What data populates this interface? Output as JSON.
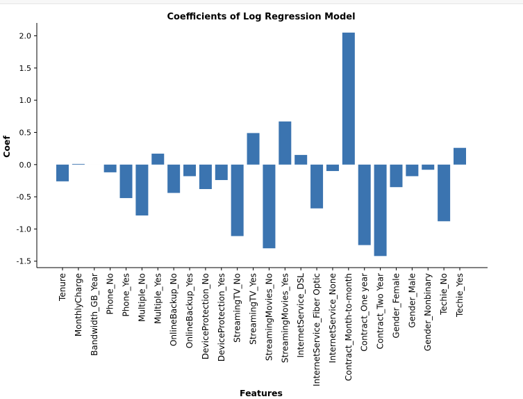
{
  "chart_data": {
    "type": "bar",
    "title": "Coefficients of Log Regression Model",
    "xlabel": "Features",
    "ylabel": "Coef",
    "ylim": [
      -1.6,
      2.2
    ],
    "yticks": [
      -1.5,
      -1.0,
      -0.5,
      0.0,
      0.5,
      1.0,
      1.5,
      2.0
    ],
    "grid": false,
    "bar_color": "#3b74b0",
    "categories": [
      "Tenure",
      "MonthlyCharge",
      "Bandwidth_GB_Year",
      "Phone_No",
      "Phone_Yes",
      "Multiple_No",
      "Multiple_Yes",
      "OnlineBackup_No",
      "OnlineBackup_Yes",
      "DeviceProtection_No",
      "DeviceProtection_Yes",
      "StreamingTV_No",
      "StreamingTV_Yes",
      "StreamingMovies_No",
      "StreamingMovies_Yes",
      "InternetService_DSL",
      "InternetService_Fiber Optic",
      "InternetService_None",
      "Contract_Month-to-month",
      "Contract_One year",
      "Contract_Two Year",
      "Gender_Female",
      "Gender_Male",
      "Gender_Nonbinary",
      "Techie_No",
      "Techie_Yes"
    ],
    "values": [
      -0.26,
      0.01,
      0.0,
      -0.12,
      -0.52,
      -0.79,
      0.17,
      -0.44,
      -0.18,
      -0.38,
      -0.24,
      -1.11,
      0.49,
      -1.3,
      0.67,
      0.15,
      -0.68,
      -0.1,
      2.05,
      -1.25,
      -1.42,
      -0.35,
      -0.18,
      -0.08,
      -0.88,
      0.26
    ]
  }
}
